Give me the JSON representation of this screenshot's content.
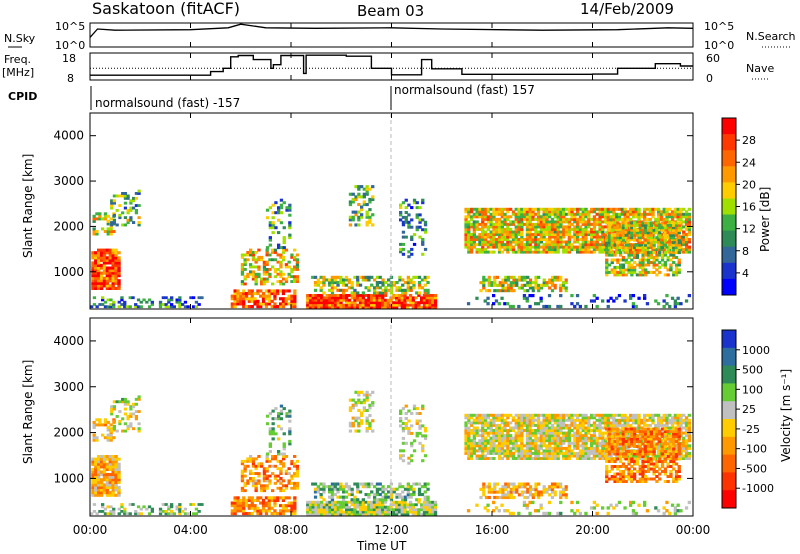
{
  "header": {
    "station": "Saskatoon (fitACF)",
    "beam": "Beam 03",
    "date": "14/Feb/2009"
  },
  "top_panel": {
    "left_label": "N.Sky",
    "right_label": "N.Search",
    "left_ticks": [
      "10^5",
      "10^0"
    ],
    "right_ticks": [
      "10^5",
      "10^0"
    ]
  },
  "freq_panel": {
    "left_label_1": "Freq.",
    "left_label_2": "[MHz]",
    "left_ticks": [
      "18",
      "8"
    ],
    "right_ticks": [
      "60",
      "0"
    ],
    "right_label": "Nave"
  },
  "cpid": {
    "label": "CPID",
    "segments": [
      {
        "text": "normalsound (fast) -157",
        "start_hour": 0
      },
      {
        "text": "normalsound (fast) 157",
        "start_hour": 12
      }
    ]
  },
  "power_panel": {
    "ylabel": "Slant Range [km]",
    "colorbar_label": "Power [dB]",
    "colorbar_ticks": [
      "28",
      "24",
      "20",
      "16",
      "12",
      "8",
      "4"
    ],
    "colorbar_colors": [
      "#ff0000",
      "#ff3800",
      "#ff6600",
      "#ff9900",
      "#ffcc00",
      "#a0e000",
      "#3cb043",
      "#2e8b57",
      "#336699",
      "#1a33cc",
      "#0000ff"
    ]
  },
  "velocity_panel": {
    "ylabel": "Slant Range [km]",
    "colorbar_label": "Velocity [m s⁻¹]",
    "colorbar_ticks": [
      "1000",
      "500",
      "100",
      "25",
      "-25",
      "-100",
      "-500",
      "-1000"
    ],
    "colorbar_colors": [
      "#1a33cc",
      "#2e6e9e",
      "#2e8b57",
      "#66cc33",
      "#c0c0c0",
      "#ffcc00",
      "#ff9900",
      "#ff6600",
      "#ff3300",
      "#ff0000"
    ]
  },
  "x_axis": {
    "ticks": [
      "00:00",
      "04:00",
      "08:00",
      "12:00",
      "16:00",
      "20:00",
      "00:00"
    ],
    "label": "Time UT"
  },
  "chart_data": {
    "type": "heatmap",
    "x_range_hours": [
      0,
      24
    ],
    "y_range_km": [
      180,
      4500
    ],
    "y_ticks": [
      "1000",
      "2000",
      "3000",
      "4000"
    ],
    "power_db_range": [
      0,
      30
    ],
    "velocity_range": [
      -1000,
      1000
    ],
    "noise_sky": [
      {
        "t": 0,
        "v": 0.4
      },
      {
        "t": 0.3,
        "v": 0.75
      },
      {
        "t": 1,
        "v": 0.7
      },
      {
        "t": 4,
        "v": 0.72
      },
      {
        "t": 5.5,
        "v": 0.8
      },
      {
        "t": 6,
        "v": 0.95
      },
      {
        "t": 7,
        "v": 0.8
      },
      {
        "t": 9,
        "v": 0.78
      },
      {
        "t": 12,
        "v": 0.8
      },
      {
        "t": 14,
        "v": 0.75
      },
      {
        "t": 18,
        "v": 0.7
      },
      {
        "t": 21,
        "v": 0.72
      },
      {
        "t": 23,
        "v": 0.8
      },
      {
        "t": 24,
        "v": 0.78
      }
    ],
    "frequency_mhz": [
      {
        "t": 0,
        "v": 9.2
      },
      {
        "t": 4.3,
        "v": 9.2
      },
      {
        "t": 4.8,
        "v": 10.8
      },
      {
        "t": 5.3,
        "v": 12.2
      },
      {
        "t": 5.6,
        "v": 17.2
      },
      {
        "t": 5.9,
        "v": 17.8
      },
      {
        "t": 6.5,
        "v": 16
      },
      {
        "t": 7.2,
        "v": 12.2
      },
      {
        "t": 7.3,
        "v": 13.8
      },
      {
        "t": 7.6,
        "v": 17.8
      },
      {
        "t": 8.5,
        "v": 10
      },
      {
        "t": 8.6,
        "v": 17.9
      },
      {
        "t": 10.2,
        "v": 17.5
      },
      {
        "t": 11.2,
        "v": 12.2
      },
      {
        "t": 12.0,
        "v": 9.4
      },
      {
        "t": 13.2,
        "v": 16
      },
      {
        "t": 13.6,
        "v": 12
      },
      {
        "t": 14.8,
        "v": 9.6
      },
      {
        "t": 20,
        "v": 9.7
      },
      {
        "t": 21.0,
        "v": 12.2
      },
      {
        "t": 22.5,
        "v": 14.2
      },
      {
        "t": 23.5,
        "v": 13.2
      },
      {
        "t": 24,
        "v": 13.2
      }
    ],
    "nave_level": 26
  }
}
